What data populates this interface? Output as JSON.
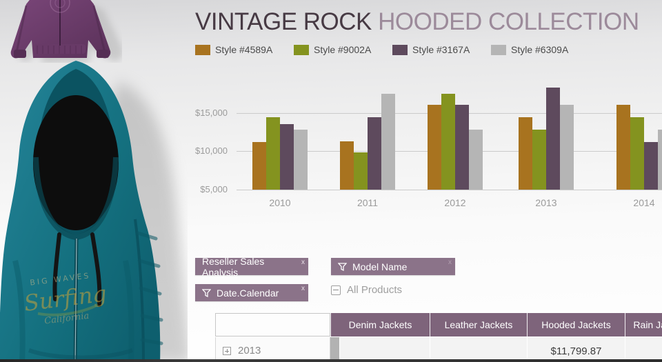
{
  "title": {
    "primary": "VINTAGE ROCK",
    "secondary": "HOODED COLLECTION"
  },
  "colors": {
    "accent_mauve_chip": "#8b7389",
    "accent_mauve_header": "#7e647b",
    "title_dark": "#473a44",
    "title_light": "#9c8a9a",
    "gridline": "#cbcbcb"
  },
  "chart_data": {
    "type": "bar",
    "title": "VINTAGE ROCK HOODED COLLECTION",
    "categories": [
      "2010",
      "2011",
      "2012",
      "2013",
      "2014"
    ],
    "series": [
      {
        "name": "Style #4589A",
        "color": "#a8731f",
        "values": [
          11200,
          11300,
          16000,
          14400,
          16000
        ]
      },
      {
        "name": "Style #9002A",
        "color": "#84931f",
        "values": [
          14400,
          9800,
          17500,
          12800,
          14400
        ]
      },
      {
        "name": "Style #3167A",
        "color": "#5e4a5d",
        "values": [
          13500,
          14400,
          16000,
          18300,
          11200
        ]
      },
      {
        "name": "Style #6309A",
        "color": "#b5b5b5",
        "values": [
          12800,
          17500,
          12800,
          16000,
          12800
        ]
      }
    ],
    "yticks": [
      {
        "label": "$15,000",
        "value": 15000
      },
      {
        "label": "$10,000",
        "value": 10000
      },
      {
        "label": "$5,000",
        "value": 5000
      }
    ],
    "ylim": [
      5000,
      18900
    ],
    "grid": true,
    "legend_position": "top",
    "xlabel": "",
    "ylabel": ""
  },
  "filters": {
    "chips": [
      {
        "label": "Reseller Sales Analysis",
        "funnel_icon": false,
        "close_label": "x",
        "close_faint": false
      },
      {
        "label": "Model Name",
        "funnel_icon": true,
        "close_label": "x",
        "close_faint": true
      },
      {
        "label": "Date.Calendar",
        "funnel_icon": true,
        "close_label": "x",
        "close_faint": false
      }
    ],
    "tree_item": {
      "label": "All Products",
      "state": "collapse-minus"
    }
  },
  "table": {
    "columns": [
      "Denim Jackets",
      "Leather Jackets",
      "Hooded Jackets",
      "Rain Jackets"
    ],
    "rows": [
      {
        "label": "2013",
        "expandable": true,
        "values": [
          "",
          "",
          "$11,799.87",
          ""
        ]
      }
    ]
  }
}
